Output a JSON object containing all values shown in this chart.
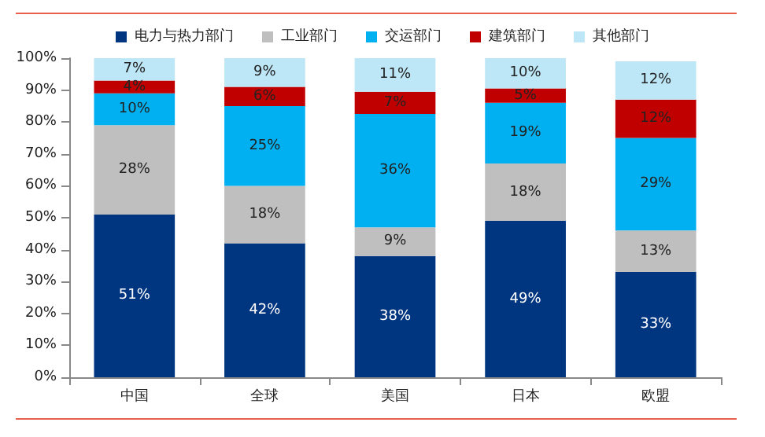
{
  "chart_data": {
    "type": "bar",
    "stacked": true,
    "legend": "top",
    "grid": false,
    "categories": [
      "中国",
      "全球",
      "美国",
      "日本",
      "欧盟"
    ],
    "ylim": [
      0,
      100
    ],
    "yticks": [
      {
        "value": 0,
        "label": "0%"
      },
      {
        "value": 10,
        "label": "10%"
      },
      {
        "value": 20,
        "label": "20%"
      },
      {
        "value": 30,
        "label": "30%"
      },
      {
        "value": 40,
        "label": "40%"
      },
      {
        "value": 50,
        "label": "50%"
      },
      {
        "value": 60,
        "label": "60%"
      },
      {
        "value": 70,
        "label": "70%"
      },
      {
        "value": 80,
        "label": "80%"
      },
      {
        "value": 90,
        "label": "90%"
      },
      {
        "value": 100,
        "label": "100%"
      }
    ],
    "series": [
      {
        "name": "电力与热力部门",
        "color": "#003580",
        "values": [
          51,
          42,
          38,
          49,
          33
        ],
        "value_labels": [
          "51%",
          "42%",
          "38%",
          "49%",
          "33%"
        ]
      },
      {
        "name": "工业部门",
        "color": "#bfbfbf",
        "values": [
          28,
          18,
          9,
          18,
          13
        ],
        "value_labels": [
          "28%",
          "18%",
          "9%",
          "18%",
          "13%"
        ]
      },
      {
        "name": "交运部门",
        "color": "#00b0f0",
        "values": [
          10,
          25,
          35.5,
          19,
          29
        ],
        "value_labels": [
          "10%",
          "25%",
          "36%",
          "19%",
          "29%"
        ]
      },
      {
        "name": "建筑部门",
        "color": "#c00000",
        "values": [
          4,
          6,
          7,
          4.5,
          12
        ],
        "value_labels": [
          "4%",
          "6%",
          "7%",
          "5%",
          "12%"
        ]
      },
      {
        "name": "其他部门",
        "color": "#bde6f6",
        "values": [
          7,
          9,
          10.5,
          9.5,
          12
        ],
        "value_labels": [
          "7%",
          "9%",
          "11%",
          "10%",
          "12%"
        ]
      }
    ]
  }
}
